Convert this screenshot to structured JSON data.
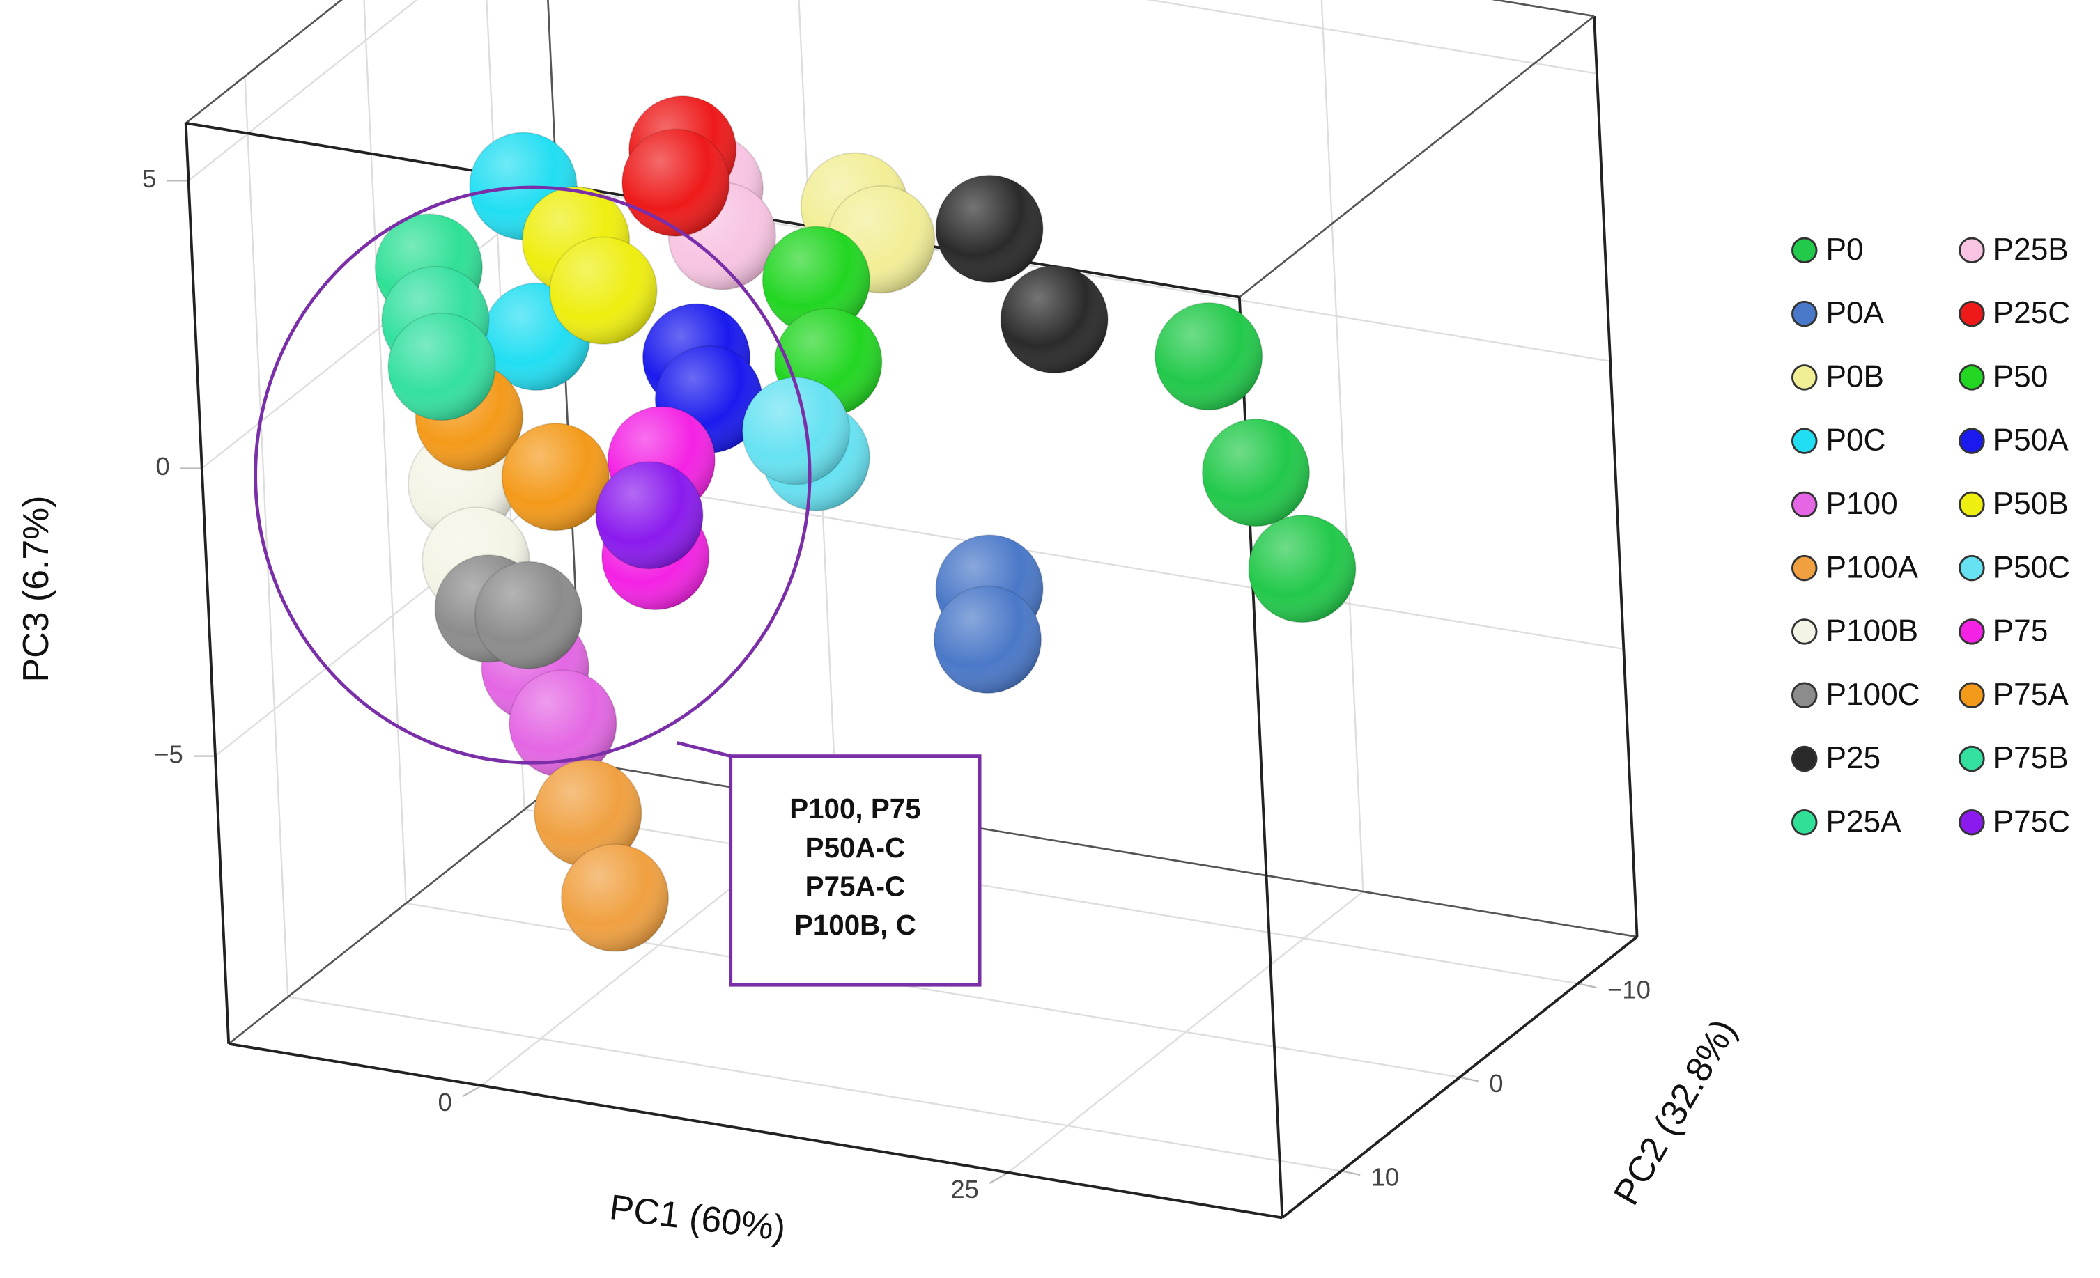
{
  "chart_data": {
    "type": "scatter3d",
    "xlabel": "PC1 (60%)",
    "ylabel": "PC2 (32.8%)",
    "zlabel": "PC3 (6.7%)",
    "xlim": [
      -12,
      38
    ],
    "ylim": [
      -15,
      15
    ],
    "zlim": [
      -10,
      6
    ],
    "xticks": [
      0,
      25
    ],
    "yticks": [
      {
        "value": -10,
        "label": "−10"
      },
      0,
      10
    ],
    "zticks": [
      {
        "value": -5,
        "label": "−5"
      },
      0,
      5
    ],
    "grid": true,
    "legend": "right",
    "series": [
      {
        "name": "P0",
        "color": "#22c94a",
        "x": [
          27.6,
          29.6,
          31.6
        ],
        "y": [
          0,
          0,
          0
        ],
        "z": [
          1.9,
          0.0,
          -1.55
        ]
      },
      {
        "name": "P0A",
        "color": "#4a78c8",
        "x": [
          16.6,
          16.4
        ],
        "y": [
          0,
          0
        ],
        "z": [
          -2.8,
          -3.7
        ]
      },
      {
        "name": "P0B",
        "color": "#f2ee96",
        "x": [
          11.0,
          12.2
        ],
        "y": [
          0,
          0
        ],
        "z": [
          3.5,
          3.0
        ]
      },
      {
        "name": "P0C",
        "color": "#22def2",
        "x": [
          -4.8,
          -4.5
        ],
        "y": [
          0,
          0
        ],
        "z": [
          2.9,
          0.3
        ]
      },
      {
        "name": "P100",
        "color": "#e466e4",
        "x": [
          -5.3,
          -4.1
        ],
        "y": [
          0,
          0
        ],
        "z": [
          -5.5,
          -6.4
        ]
      },
      {
        "name": "P100A",
        "color": "#f0a040",
        "x": [
          -3.1,
          -2.0
        ],
        "y": [
          0,
          0
        ],
        "z": [
          -7.9,
          -9.3
        ]
      },
      {
        "name": "P100B",
        "color": "#f4f4e6",
        "x": [
          -8.4,
          -7.9
        ],
        "y": [
          0,
          0
        ],
        "z": [
          -2.5,
          -3.8
        ]
      },
      {
        "name": "P100C",
        "color": "#8c8c8c",
        "x": [
          -7.4,
          -5.5
        ],
        "y": [
          0,
          0
        ],
        "z": [
          -4.6,
          -4.6
        ]
      },
      {
        "name": "P25",
        "color": "#2a2a2a",
        "x": [
          17.4,
          20.3
        ],
        "y": [
          0,
          0
        ],
        "z": [
          3.5,
          2.1
        ]
      },
      {
        "name": "P25A",
        "color": "#2fe096",
        "x": [
          -9.5
        ],
        "y": [
          0
        ],
        "z": [
          1.2
        ]
      },
      {
        "name": "P25B",
        "color": "#f8c4e2",
        "x": [
          4.1,
          4.6
        ],
        "y": [
          0,
          0
        ],
        "z": [
          3.4,
          2.6
        ]
      },
      {
        "name": "P25C",
        "color": "#ee1a1a",
        "x": [
          2.9,
          2.5
        ],
        "y": [
          0,
          0
        ],
        "z": [
          4.0,
          3.4
        ]
      },
      {
        "name": "P50",
        "color": "#22d622",
        "x": [
          9.0,
          9.4
        ],
        "y": [
          0,
          0
        ],
        "z": [
          2.1,
          0.7
        ]
      },
      {
        "name": "P50A",
        "color": "#1a1aee",
        "x": [
          3.1,
          3.6
        ],
        "y": [
          0,
          0
        ],
        "z": [
          0.4,
          -0.3
        ]
      },
      {
        "name": "P50B",
        "color": "#eeee10",
        "x": [
          -2.4,
          -1.2
        ],
        "y": [
          0,
          0
        ],
        "z": [
          2.1,
          1.3
        ]
      },
      {
        "name": "P50C",
        "color": "#66e2f2",
        "x": [
          8.6,
          7.7
        ],
        "y": [
          0,
          0
        ],
        "z": [
          -1.0,
          -0.6
        ]
      },
      {
        "name": "P75",
        "color": "#f422e4",
        "x": [
          1.2,
          0.7
        ],
        "y": [
          0,
          0
        ],
        "z": [
          -1.5,
          -3.2
        ]
      },
      {
        "name": "P75A",
        "color": "#f49a1a",
        "x": [
          -7.9,
          -3.9
        ],
        "y": [
          0,
          0
        ],
        "z": [
          -1.3,
          -2.1
        ]
      },
      {
        "name": "P75B",
        "color": "#34e0a0",
        "x": [
          -9.3,
          -9.1
        ],
        "y": [
          0,
          0
        ],
        "z": [
          0.3,
          -0.5
        ]
      },
      {
        "name": "P75C",
        "color": "#8a1aee",
        "x": [
          0.5
        ],
        "y": [
          0
        ],
        "z": [
          -2.5
        ]
      }
    ],
    "annotation": {
      "lines": [
        "P100, P75",
        "P50A-C",
        "P75A-C",
        "P100B, C"
      ]
    }
  }
}
